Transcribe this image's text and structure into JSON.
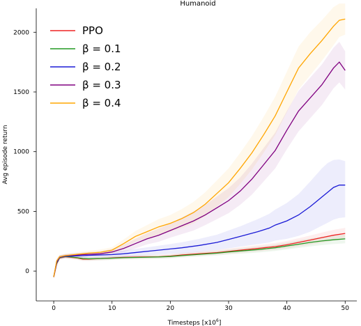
{
  "chart_data": {
    "type": "line",
    "title": "Humanoid",
    "xlabel": "Timesteps [x10",
    "xlabel_sup": "6",
    "xlabel_end": "]",
    "ylabel": "Avg episode return",
    "xlim": [
      -3,
      52
    ],
    "ylim": [
      -250,
      2200
    ],
    "xticks": [
      0,
      10,
      20,
      30,
      40,
      50
    ],
    "yticks": [
      0,
      500,
      1000,
      1500,
      2000
    ],
    "grid": false,
    "legend_position": "top-left",
    "series": [
      {
        "name": "PPO",
        "color": "#ee2222",
        "x": [
          0,
          0.5,
          1,
          2,
          3,
          4,
          5,
          6,
          8,
          10,
          12,
          15,
          18,
          20,
          22,
          25,
          28,
          30,
          32,
          35,
          38,
          40,
          42,
          44,
          46,
          48,
          50
        ],
        "y": [
          -50,
          60,
          110,
          120,
          115,
          110,
          100,
          100,
          105,
          110,
          115,
          118,
          120,
          125,
          135,
          145,
          155,
          165,
          175,
          190,
          205,
          220,
          240,
          260,
          280,
          300,
          315
        ],
        "band": [
          [
            -60,
            -40
          ],
          [
            40,
            80
          ],
          [
            95,
            125
          ],
          [
            105,
            135
          ],
          [
            100,
            130
          ],
          [
            95,
            125
          ],
          [
            85,
            115
          ],
          [
            85,
            115
          ],
          [
            90,
            120
          ],
          [
            95,
            125
          ],
          [
            100,
            130
          ],
          [
            103,
            133
          ],
          [
            105,
            137
          ],
          [
            110,
            142
          ],
          [
            118,
            152
          ],
          [
            128,
            164
          ],
          [
            136,
            176
          ],
          [
            144,
            188
          ],
          [
            152,
            200
          ],
          [
            165,
            217
          ],
          [
            178,
            235
          ],
          [
            190,
            252
          ],
          [
            206,
            275
          ],
          [
            222,
            298
          ],
          [
            238,
            322
          ],
          [
            255,
            345
          ],
          [
            268,
            362
          ]
        ]
      },
      {
        "name": "β = 0.1",
        "color": "#229922",
        "x": [
          0,
          0.5,
          1,
          2,
          3,
          4,
          5,
          6,
          8,
          10,
          12,
          15,
          18,
          20,
          22,
          25,
          28,
          30,
          32,
          35,
          38,
          40,
          42,
          44,
          46,
          48,
          50
        ],
        "y": [
          -45,
          65,
          112,
          122,
          118,
          112,
          105,
          103,
          105,
          108,
          112,
          115,
          118,
          122,
          130,
          140,
          150,
          160,
          168,
          180,
          195,
          210,
          225,
          240,
          252,
          262,
          270
        ],
        "band": [
          [
            -55,
            -35
          ],
          [
            45,
            85
          ],
          [
            97,
            127
          ],
          [
            107,
            137
          ],
          [
            103,
            133
          ],
          [
            97,
            127
          ],
          [
            90,
            120
          ],
          [
            88,
            118
          ],
          [
            90,
            120
          ],
          [
            93,
            123
          ],
          [
            97,
            127
          ],
          [
            100,
            130
          ],
          [
            103,
            133
          ],
          [
            106,
            138
          ],
          [
            113,
            147
          ],
          [
            122,
            158
          ],
          [
            130,
            170
          ],
          [
            139,
            181
          ],
          [
            145,
            191
          ],
          [
            155,
            205
          ],
          [
            168,
            222
          ],
          [
            181,
            239
          ],
          [
            194,
            256
          ],
          [
            207,
            273
          ],
          [
            217,
            287
          ],
          [
            226,
            298
          ],
          [
            233,
            307
          ]
        ]
      },
      {
        "name": "β = 0.2",
        "color": "#1a1ad6",
        "x": [
          0,
          0.5,
          1,
          2,
          3,
          4,
          5,
          6,
          8,
          10,
          12,
          15,
          18,
          20,
          22,
          25,
          28,
          30,
          32,
          35,
          37,
          38,
          40,
          42,
          44,
          45,
          46,
          47,
          48,
          49,
          50
        ],
        "y": [
          -50,
          70,
          115,
          125,
          125,
          128,
          130,
          132,
          135,
          138,
          145,
          160,
          175,
          185,
          195,
          215,
          240,
          265,
          290,
          330,
          360,
          385,
          420,
          470,
          540,
          580,
          620,
          660,
          700,
          720,
          720
        ],
        "band": [
          [
            -60,
            -40
          ],
          [
            50,
            90
          ],
          [
            100,
            130
          ],
          [
            110,
            140
          ],
          [
            108,
            142
          ],
          [
            110,
            146
          ],
          [
            110,
            150
          ],
          [
            110,
            154
          ],
          [
            112,
            158
          ],
          [
            114,
            162
          ],
          [
            118,
            172
          ],
          [
            128,
            192
          ],
          [
            138,
            212
          ],
          [
            144,
            226
          ],
          [
            148,
            242
          ],
          [
            160,
            270
          ],
          [
            175,
            305
          ],
          [
            190,
            340
          ],
          [
            205,
            375
          ],
          [
            225,
            435
          ],
          [
            240,
            480
          ],
          [
            255,
            515
          ],
          [
            270,
            570
          ],
          [
            295,
            645
          ],
          [
            330,
            750
          ],
          [
            355,
            805
          ],
          [
            380,
            860
          ],
          [
            405,
            905
          ],
          [
            430,
            930
          ],
          [
            445,
            935
          ],
          [
            450,
            920
          ]
        ]
      },
      {
        "name": "β = 0.3",
        "color": "#800080",
        "x": [
          0,
          0.5,
          1,
          2,
          3,
          4,
          5,
          6,
          8,
          10,
          12,
          14,
          16,
          18,
          20,
          22,
          24,
          26,
          28,
          30,
          32,
          34,
          36,
          38,
          40,
          42,
          44,
          46,
          48,
          49,
          50
        ],
        "y": [
          -50,
          80,
          118,
          128,
          132,
          135,
          138,
          140,
          145,
          160,
          190,
          230,
          270,
          300,
          340,
          380,
          420,
          470,
          530,
          590,
          670,
          770,
          890,
          1010,
          1180,
          1340,
          1450,
          1560,
          1700,
          1750,
          1680
        ],
        "band": [
          [
            -60,
            -40
          ],
          [
            60,
            100
          ],
          [
            103,
            133
          ],
          [
            113,
            143
          ],
          [
            115,
            149
          ],
          [
            118,
            152
          ],
          [
            120,
            156
          ],
          [
            121,
            159
          ],
          [
            125,
            165
          ],
          [
            135,
            185
          ],
          [
            158,
            222
          ],
          [
            190,
            270
          ],
          [
            223,
            317
          ],
          [
            245,
            355
          ],
          [
            280,
            400
          ],
          [
            310,
            450
          ],
          [
            340,
            500
          ],
          [
            385,
            555
          ],
          [
            435,
            625
          ],
          [
            485,
            695
          ],
          [
            555,
            785
          ],
          [
            640,
            900
          ],
          [
            750,
            1030
          ],
          [
            860,
            1160
          ],
          [
            1020,
            1340
          ],
          [
            1170,
            1510
          ],
          [
            1280,
            1620
          ],
          [
            1390,
            1730
          ],
          [
            1530,
            1870
          ],
          [
            1580,
            1920
          ],
          [
            1520,
            1840
          ]
        ]
      },
      {
        "name": "β = 0.4",
        "color": "#ffa500",
        "x": [
          0,
          0.5,
          1,
          2,
          3,
          4,
          5,
          6,
          8,
          10,
          12,
          14,
          16,
          18,
          20,
          22,
          24,
          26,
          28,
          30,
          32,
          34,
          36,
          38,
          40,
          42,
          44,
          46,
          48,
          49,
          50
        ],
        "y": [
          -50,
          85,
          120,
          130,
          135,
          140,
          145,
          150,
          158,
          175,
          230,
          290,
          330,
          370,
          400,
          440,
          490,
          560,
          650,
          740,
          860,
          990,
          1140,
          1300,
          1500,
          1700,
          1820,
          1930,
          2050,
          2100,
          2110
        ],
        "band": [
          [
            -60,
            -40
          ],
          [
            65,
            105
          ],
          [
            105,
            135
          ],
          [
            115,
            145
          ],
          [
            118,
            152
          ],
          [
            122,
            158
          ],
          [
            126,
            164
          ],
          [
            130,
            170
          ],
          [
            136,
            180
          ],
          [
            150,
            200
          ],
          [
            195,
            265
          ],
          [
            245,
            335
          ],
          [
            275,
            385
          ],
          [
            305,
            435
          ],
          [
            330,
            470
          ],
          [
            360,
            520
          ],
          [
            400,
            580
          ],
          [
            460,
            660
          ],
          [
            540,
            760
          ],
          [
            620,
            860
          ],
          [
            730,
            990
          ],
          [
            850,
            1130
          ],
          [
            990,
            1290
          ],
          [
            1140,
            1460
          ],
          [
            1330,
            1670
          ],
          [
            1520,
            1880
          ],
          [
            1640,
            2000
          ],
          [
            1760,
            2100
          ],
          [
            1890,
            2210
          ],
          [
            1960,
            2240
          ],
          [
            1980,
            2240
          ]
        ]
      }
    ]
  }
}
